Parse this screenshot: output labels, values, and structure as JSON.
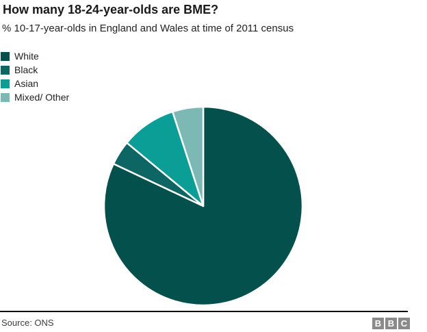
{
  "page": {
    "title": "How many 18-24-year-olds are BME?",
    "subtitle": "% 10-17-year-olds in England and Wales at time of 2011 census"
  },
  "chart_data": {
    "type": "pie",
    "title": "How many 18-24-year-olds are BME?",
    "subtitle": "% 10-17-year-olds in England and Wales at time of 2011 census",
    "categories": [
      "White",
      "Black",
      "Asian",
      "Mixed/ Other"
    ],
    "values": [
      82,
      4,
      9,
      5
    ],
    "unit": "%",
    "colors": [
      "#04504c",
      "#0d6664",
      "#0a9e96",
      "#7cb9b5"
    ],
    "start_angle": "12 o'clock",
    "direction": "clockwise",
    "slice_separator_color": "#ffffff",
    "legend_position": "top-left",
    "legend_order": [
      "White",
      "Black",
      "Asian",
      "Mixed/ Other"
    ]
  },
  "footer": {
    "source": "Source: ONS",
    "logo_name": "BBC",
    "logo_letters": [
      "B",
      "B",
      "C"
    ],
    "logo_block_color": "#8a8a8a"
  }
}
